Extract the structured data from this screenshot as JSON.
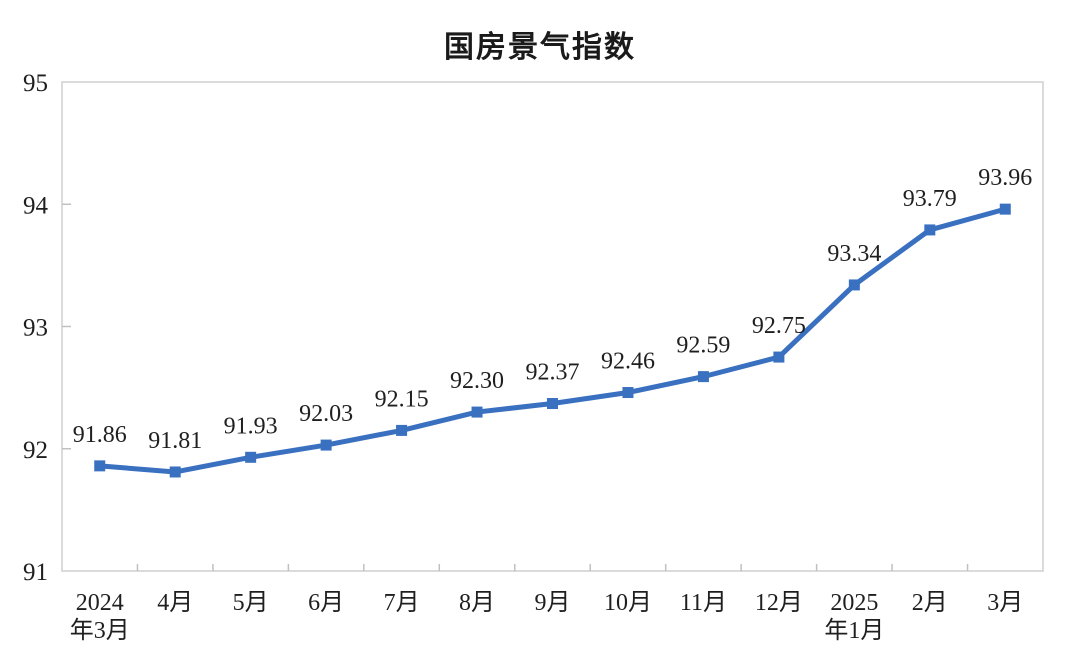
{
  "title": "国房景气指数",
  "chart_data": {
    "type": "line",
    "title": "国房景气指数",
    "categories": [
      "2024年3月",
      "4月",
      "5月",
      "6月",
      "7月",
      "8月",
      "9月",
      "10月",
      "11月",
      "12月",
      "2025年1月",
      "2月",
      "3月"
    ],
    "x_tick_lines": [
      [
        "2024",
        "年3月"
      ],
      [
        "4月"
      ],
      [
        "5月"
      ],
      [
        "6月"
      ],
      [
        "7月"
      ],
      [
        "8月"
      ],
      [
        "9月"
      ],
      [
        "10月"
      ],
      [
        "11月"
      ],
      [
        "12月"
      ],
      [
        "2025",
        "年1月"
      ],
      [
        "2月"
      ],
      [
        "3月"
      ]
    ],
    "values": [
      91.86,
      91.81,
      91.93,
      92.03,
      92.15,
      92.3,
      92.37,
      92.46,
      92.59,
      92.75,
      93.34,
      93.79,
      93.96
    ],
    "data_labels": [
      "91.86",
      "91.81",
      "91.93",
      "92.03",
      "92.15",
      "92.30",
      "92.37",
      "92.46",
      "92.59",
      "92.75",
      "93.34",
      "93.79",
      "93.96"
    ],
    "ylim": [
      91,
      95
    ],
    "yticks": [
      91,
      92,
      93,
      94,
      95
    ],
    "ytick_labels": [
      "91",
      "92",
      "93",
      "94",
      "95"
    ],
    "grid": "off",
    "legend": "none",
    "line_color": "#3A70C0",
    "marker": "square",
    "frame_color": "#CFCFCF",
    "tick_color": "#C0C0C0",
    "text_color": "#1F1F1F"
  }
}
